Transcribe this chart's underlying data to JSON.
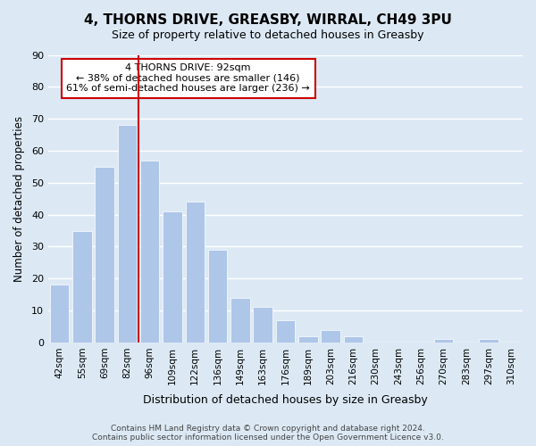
{
  "title": "4, THORNS DRIVE, GREASBY, WIRRAL, CH49 3PU",
  "subtitle": "Size of property relative to detached houses in Greasby",
  "xlabel": "Distribution of detached houses by size in Greasby",
  "ylabel": "Number of detached properties",
  "bin_labels": [
    "42sqm",
    "55sqm",
    "69sqm",
    "82sqm",
    "96sqm",
    "109sqm",
    "122sqm",
    "136sqm",
    "149sqm",
    "163sqm",
    "176sqm",
    "189sqm",
    "203sqm",
    "216sqm",
    "230sqm",
    "243sqm",
    "256sqm",
    "270sqm",
    "283sqm",
    "297sqm",
    "310sqm"
  ],
  "bar_heights": [
    18,
    35,
    55,
    68,
    57,
    41,
    44,
    29,
    14,
    11,
    7,
    2,
    4,
    2,
    0,
    0,
    0,
    1,
    0,
    1,
    0
  ],
  "bar_color": "#aec6e8",
  "grid_color": "#ffffff",
  "background_color": "#dce9f5",
  "red_line_color": "#cc0000",
  "red_line_x": 3.5,
  "annotation_title": "4 THORNS DRIVE: 92sqm",
  "annotation_line1": "← 38% of detached houses are smaller (146)",
  "annotation_line2": "61% of semi-detached houses are larger (236) →",
  "annotation_box_color": "#ffffff",
  "annotation_border_color": "#cc0000",
  "footer_line1": "Contains HM Land Registry data © Crown copyright and database right 2024.",
  "footer_line2": "Contains public sector information licensed under the Open Government Licence v3.0.",
  "ylim": [
    0,
    90
  ],
  "yticks": [
    0,
    10,
    20,
    30,
    40,
    50,
    60,
    70,
    80,
    90
  ]
}
